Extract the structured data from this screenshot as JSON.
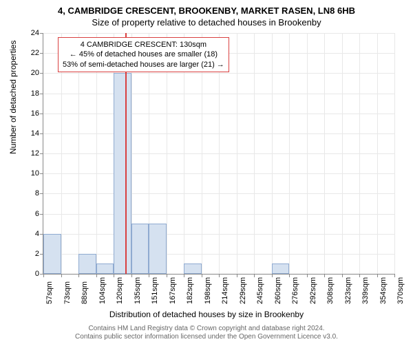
{
  "title_main": "4, CAMBRIDGE CRESCENT, BROOKENBY, MARKET RASEN, LN8 6HB",
  "title_sub": "Size of property relative to detached houses in Brookenby",
  "y_axis_label": "Number of detached properties",
  "x_axis_label": "Distribution of detached houses by size in Brookenby",
  "footer_line1": "Contains HM Land Registry data © Crown copyright and database right 2024.",
  "footer_line2": "Contains public sector information licensed under the Open Government Licence v3.0.",
  "annotation": {
    "line1": "4 CAMBRIDGE CRESCENT: 130sqm",
    "line2": "← 45% of detached houses are smaller (18)",
    "line3": "53% of semi-detached houses are larger (21) →"
  },
  "chart": {
    "type": "histogram",
    "ylim": [
      0,
      24
    ],
    "ytick_step": 2,
    "x_categories": [
      "57sqm",
      "73sqm",
      "88sqm",
      "104sqm",
      "120sqm",
      "135sqm",
      "151sqm",
      "167sqm",
      "182sqm",
      "198sqm",
      "214sqm",
      "229sqm",
      "245sqm",
      "260sqm",
      "276sqm",
      "292sqm",
      "308sqm",
      "323sqm",
      "339sqm",
      "354sqm",
      "370sqm"
    ],
    "bar_values": [
      4,
      0,
      2,
      1,
      20,
      5,
      5,
      0,
      1,
      0,
      0,
      0,
      0,
      1,
      0,
      0,
      0,
      0,
      0,
      0
    ],
    "bar_fill": "#d5e1f0",
    "bar_border": "#8faad0",
    "marker_color": "#d93f3f",
    "marker_bin_index": 4,
    "marker_fraction_in_bin": 0.67,
    "grid_color": "#e8e8e8",
    "background": "#ffffff"
  }
}
